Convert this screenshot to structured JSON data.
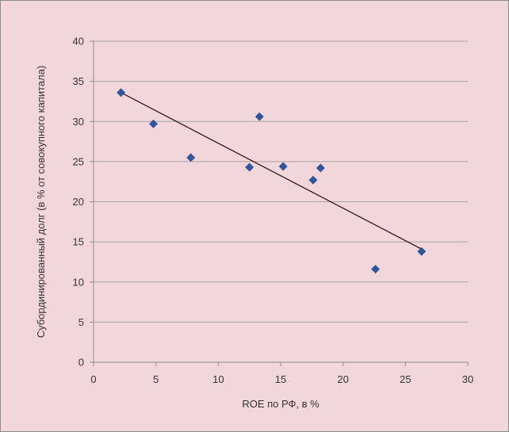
{
  "chart_data": {
    "type": "scatter",
    "title": "",
    "xlabel": "ROE по РФ, в %",
    "ylabel": "Субординированный долг (в % от совокупного капитала)",
    "xlim": [
      0,
      30
    ],
    "ylim": [
      0,
      40
    ],
    "x_ticks": [
      0,
      5,
      10,
      15,
      20,
      25,
      30
    ],
    "y_ticks": [
      0,
      5,
      10,
      15,
      20,
      25,
      30,
      35,
      40
    ],
    "grid": "horizontal",
    "legend": "none",
    "marker": "diamond",
    "colors": {
      "background": "#f2d7da",
      "marker": "#2f56a0",
      "trendline": "#3a1a1a",
      "gridline": "#a6a6a6"
    },
    "points": [
      {
        "x": 2.2,
        "y": 33.6
      },
      {
        "x": 4.8,
        "y": 29.7
      },
      {
        "x": 7.8,
        "y": 25.5
      },
      {
        "x": 12.5,
        "y": 24.3
      },
      {
        "x": 13.3,
        "y": 30.6
      },
      {
        "x": 15.2,
        "y": 24.4
      },
      {
        "x": 17.6,
        "y": 22.7
      },
      {
        "x": 18.2,
        "y": 24.2
      },
      {
        "x": 22.6,
        "y": 11.6
      },
      {
        "x": 26.3,
        "y": 13.8
      }
    ],
    "trendline": {
      "type": "linear",
      "from": {
        "x": 2.2,
        "y": 33.6
      },
      "to": {
        "x": 26.3,
        "y": 14.1
      }
    }
  }
}
